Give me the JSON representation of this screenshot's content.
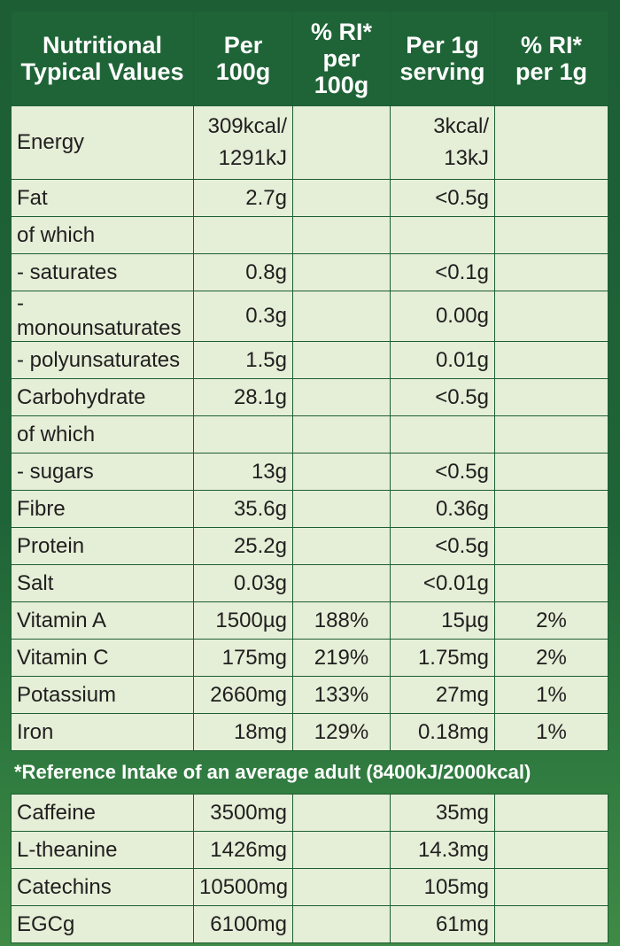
{
  "headers": [
    "Nutritional Typical Values",
    "Per 100g",
    "% RI* per 100g",
    "Per 1g serving",
    "% RI* per 1g"
  ],
  "rows": [
    {
      "label": "Energy",
      "per100": "309kcal/ 1291kJ",
      "ri100": "",
      "per1": "3kcal/ 13kJ",
      "ri1": ""
    },
    {
      "label": "Fat",
      "per100": "2.7g",
      "ri100": "",
      "per1": "<0.5g",
      "ri1": ""
    },
    {
      "label": "of which",
      "per100": "",
      "ri100": "",
      "per1": "",
      "ri1": ""
    },
    {
      "label": "- saturates",
      "per100": "0.8g",
      "ri100": "",
      "per1": "<0.1g",
      "ri1": ""
    },
    {
      "label": "- monounsaturates",
      "per100": "0.3g",
      "ri100": "",
      "per1": "0.00g",
      "ri1": ""
    },
    {
      "label": "- polyunsaturates",
      "per100": "1.5g",
      "ri100": "",
      "per1": "0.01g",
      "ri1": ""
    },
    {
      "label": "Carbohydrate",
      "per100": "28.1g",
      "ri100": "",
      "per1": "<0.5g",
      "ri1": ""
    },
    {
      "label": "of which",
      "per100": "",
      "ri100": "",
      "per1": "",
      "ri1": ""
    },
    {
      "label": "- sugars",
      "per100": "13g",
      "ri100": "",
      "per1": "<0.5g",
      "ri1": ""
    },
    {
      "label": "Fibre",
      "per100": "35.6g",
      "ri100": "",
      "per1": "0.36g",
      "ri1": ""
    },
    {
      "label": "Protein",
      "per100": "25.2g",
      "ri100": "",
      "per1": "<0.5g",
      "ri1": ""
    },
    {
      "label": "Salt",
      "per100": "0.03g",
      "ri100": "",
      "per1": "<0.01g",
      "ri1": ""
    },
    {
      "label": "Vitamin A",
      "per100": "1500µg",
      "ri100": "188%",
      "per1": "15µg",
      "ri1": "2%"
    },
    {
      "label": "Vitamin C",
      "per100": "175mg",
      "ri100": "219%",
      "per1": "1.75mg",
      "ri1": "2%"
    },
    {
      "label": "Potassium",
      "per100": "2660mg",
      "ri100": "133%",
      "per1": "27mg",
      "ri1": "1%"
    },
    {
      "label": "Iron",
      "per100": "18mg",
      "ri100": "129%",
      "per1": "0.18mg",
      "ri1": "1%"
    }
  ],
  "footnote": "*Reference Intake of an average adult (8400kJ/2000kcal)",
  "extra_rows": [
    {
      "label": "Caffeine",
      "per100": "3500mg",
      "ri100": "",
      "per1": "35mg",
      "ri1": ""
    },
    {
      "label": "L-theanine",
      "per100": "1426mg",
      "ri100": "",
      "per1": "14.3mg",
      "ri1": ""
    },
    {
      "label": "Catechins",
      "per100": "10500mg",
      "ri100": "",
      "per1": "105mg",
      "ri1": ""
    },
    {
      "label": "EGCg",
      "per100": "6100mg",
      "ri100": "",
      "per1": "61mg",
      "ri1": ""
    }
  ],
  "colors": {
    "header_green": "#1f6437",
    "cell_bg": "#e5eed6",
    "border": "#1d5e34"
  }
}
